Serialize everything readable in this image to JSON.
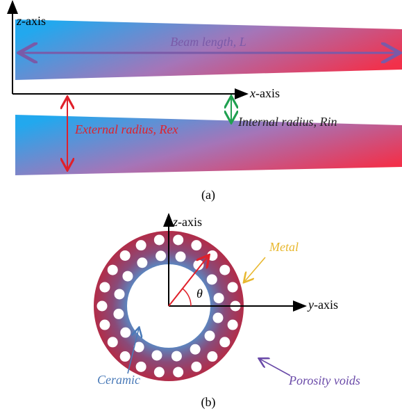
{
  "panel_a": {
    "z_axis": {
      "var": "z",
      "suffix": "-axis"
    },
    "beam_length": "Beam length, L",
    "x_axis": {
      "var": "x",
      "suffix": "-axis"
    },
    "external_radius": "External radius, Rex",
    "internal_radius": "Internal radius, Rin",
    "caption": "(a)"
  },
  "panel_b": {
    "z_axis": {
      "var": "z",
      "suffix": "-axis"
    },
    "y_axis": {
      "var": "y",
      "suffix": "-axis"
    },
    "theta": "θ",
    "metal": "Metal",
    "ceramic": "Ceramic",
    "porosity_voids": "Porosity voids",
    "caption": "(b)"
  }
}
